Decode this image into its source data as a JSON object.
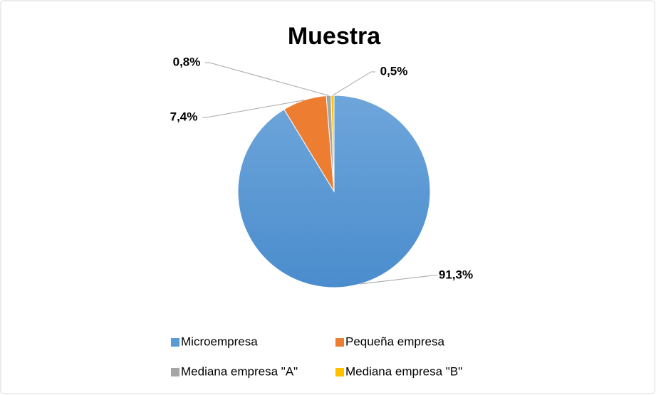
{
  "chart_data": {
    "type": "pie",
    "title": "Muestra",
    "categories": [
      "Microempresa",
      "Pequeña empresa",
      "Mediana empresa \"A\"",
      "Mediana empresa \"B\""
    ],
    "values": [
      91.3,
      7.4,
      0.8,
      0.5
    ],
    "value_labels": [
      "91,3%",
      "7,4%",
      "0,8%",
      "0,5%"
    ],
    "colors": [
      "#5b9bd5",
      "#ed7d31",
      "#a5a5a5",
      "#ffc000"
    ],
    "legend": "bottom"
  }
}
